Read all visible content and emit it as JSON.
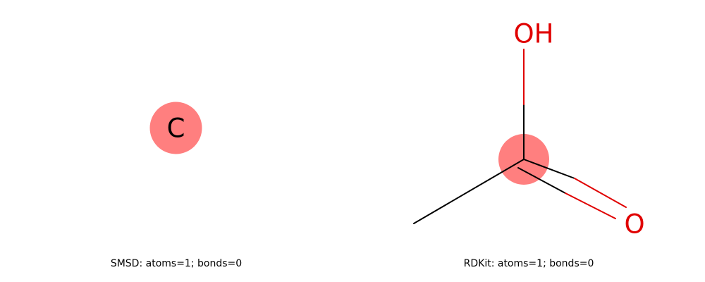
{
  "panels": [
    {
      "caption": "SMSD: atoms=1; bonds=0",
      "atoms": [
        {
          "label": "C",
          "highlighted": true
        }
      ],
      "bonds": []
    },
    {
      "caption": "RDKit: atoms=1; bonds=0",
      "atoms": [
        {
          "label": "OH",
          "highlighted": false
        },
        {
          "label": "",
          "highlighted": true
        },
        {
          "label": "",
          "highlighted": false
        },
        {
          "label": "O",
          "highlighted": false
        }
      ],
      "bonds": [
        {
          "from": 0,
          "to": 1,
          "order": 1
        },
        {
          "from": 1,
          "to": 2,
          "order": 1
        },
        {
          "from": 1,
          "to": 3,
          "order": 2
        }
      ]
    }
  ],
  "colors": {
    "highlight": "#ff7f7f",
    "carbon": "#000000",
    "oxygen": "#e00000",
    "bond": "#000000"
  }
}
